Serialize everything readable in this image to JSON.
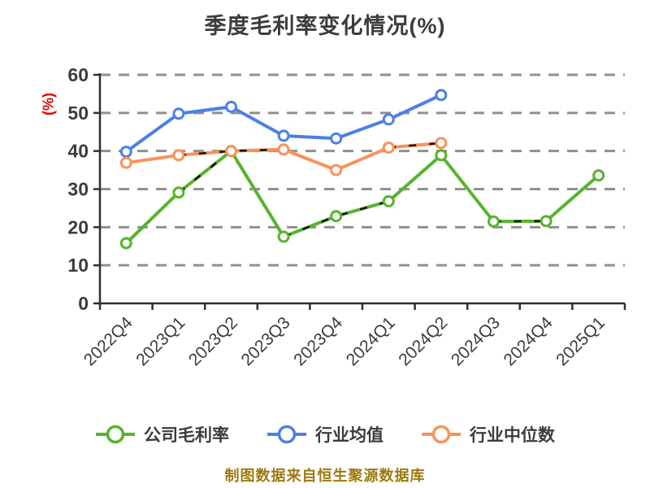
{
  "chart_data": {
    "type": "line",
    "title": "季度毛利率变化情况(%)",
    "ylabel": "(%)",
    "footer": "制图数据来自恒生聚源数据库",
    "ylim": [
      0,
      60
    ],
    "y_ticks": [
      0,
      10,
      20,
      30,
      40,
      50,
      60
    ],
    "grid": "horizontal-dashed",
    "legend_position": "bottom",
    "x_label_rotation_deg": -45,
    "categories": [
      "2022Q4",
      "2023Q1",
      "2023Q2",
      "2023Q3",
      "2023Q4",
      "2024Q1",
      "2024Q2",
      "2024Q3",
      "2024Q4",
      "2025Q1"
    ],
    "series": [
      {
        "name": "公司毛利率",
        "color": "#55b42d",
        "values": [
          15.8,
          29.1,
          40.0,
          17.5,
          22.9,
          26.8,
          38.9,
          21.5,
          21.6,
          33.6
        ]
      },
      {
        "name": "行业均值",
        "color": "#4c80e6",
        "values": [
          39.8,
          49.8,
          51.6,
          44.0,
          43.3,
          48.3,
          54.7
        ]
      },
      {
        "name": "行业中位数",
        "color": "#fa9159",
        "values": [
          36.9,
          38.9,
          40.0,
          40.4,
          35.0,
          40.9,
          42.1
        ]
      }
    ],
    "dashed_overlay_segments": [
      {
        "series_index": 0,
        "from": 1,
        "to": 2
      },
      {
        "series_index": 0,
        "from": 3,
        "to": 5
      },
      {
        "series_index": 0,
        "from": 7,
        "to": 8
      },
      {
        "series_index": 2,
        "from": 1,
        "to": 3
      },
      {
        "series_index": 2,
        "from": 5,
        "to": 6
      }
    ]
  },
  "colors": {
    "title": "#3c3c3c",
    "axis": "#2f2f2f",
    "tick_label": "#3c3c3c",
    "gridline": "#909090",
    "ylabel": "#e60000",
    "footer": "#9d7a10",
    "overlay_dash": "#111111",
    "marker_fill": "#ffffff"
  }
}
